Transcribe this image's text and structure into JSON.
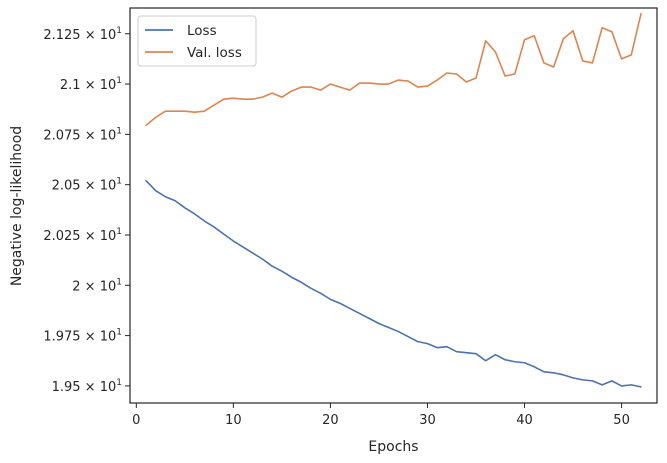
{
  "chart_data": {
    "type": "line",
    "xlabel": "Epochs",
    "ylabel": "Negative log-likelihood",
    "xlim": [
      -0.65,
      53.65
    ],
    "ylim": [
      19.415,
      21.378
    ],
    "grid": false,
    "legend_position": "top-left",
    "x_ticks": [
      {
        "value": 0,
        "label": "0"
      },
      {
        "value": 10,
        "label": "10"
      },
      {
        "value": 20,
        "label": "20"
      },
      {
        "value": 30,
        "label": "30"
      },
      {
        "value": 40,
        "label": "40"
      },
      {
        "value": 50,
        "label": "50"
      }
    ],
    "y_ticks": [
      {
        "value": 19.5,
        "mantissa": "1.95",
        "exp": "1"
      },
      {
        "value": 19.75,
        "mantissa": "1.975",
        "exp": "1"
      },
      {
        "value": 20.0,
        "mantissa": "2",
        "exp": "1"
      },
      {
        "value": 20.25,
        "mantissa": "2.025",
        "exp": "1"
      },
      {
        "value": 20.5,
        "mantissa": "2.05",
        "exp": "1"
      },
      {
        "value": 20.75,
        "mantissa": "2.075",
        "exp": "1"
      },
      {
        "value": 21.0,
        "mantissa": "2.1",
        "exp": "1"
      },
      {
        "value": 21.25,
        "mantissa": "2.125",
        "exp": "1"
      }
    ],
    "x": [
      1,
      2,
      3,
      4,
      5,
      6,
      7,
      8,
      9,
      10,
      11,
      12,
      13,
      14,
      15,
      16,
      17,
      18,
      19,
      20,
      21,
      22,
      23,
      24,
      25,
      26,
      27,
      28,
      29,
      30,
      31,
      32,
      33,
      34,
      35,
      36,
      37,
      38,
      39,
      40,
      41,
      42,
      43,
      44,
      45,
      46,
      47,
      48,
      49,
      50,
      51,
      52
    ],
    "series": [
      {
        "name": "Loss",
        "color": "#4c72b0",
        "values": [
          20.52,
          20.47,
          20.44,
          20.42,
          20.385,
          20.355,
          20.32,
          20.29,
          20.255,
          20.22,
          20.19,
          20.16,
          20.13,
          20.095,
          20.07,
          20.04,
          20.015,
          19.985,
          19.96,
          19.93,
          19.91,
          19.885,
          19.86,
          19.835,
          19.81,
          19.79,
          19.77,
          19.745,
          19.72,
          19.71,
          19.69,
          19.695,
          19.67,
          19.665,
          19.66,
          19.625,
          19.655,
          19.63,
          19.62,
          19.615,
          19.595,
          19.57,
          19.565,
          19.555,
          19.54,
          19.53,
          19.525,
          19.505,
          19.525,
          19.5,
          19.505,
          19.495
        ]
      },
      {
        "name": "Val. loss",
        "color": "#dd8452",
        "values": [
          20.795,
          20.835,
          20.865,
          20.865,
          20.865,
          20.86,
          20.865,
          20.895,
          20.925,
          20.93,
          20.925,
          20.925,
          20.935,
          20.955,
          20.935,
          20.965,
          20.985,
          20.985,
          20.97,
          21.0,
          20.985,
          20.97,
          21.005,
          21.005,
          21.0,
          21.0,
          21.02,
          21.015,
          20.985,
          20.99,
          21.02,
          21.055,
          21.05,
          21.01,
          21.03,
          21.215,
          21.16,
          21.04,
          21.05,
          21.22,
          21.24,
          21.105,
          21.085,
          21.225,
          21.265,
          21.115,
          21.105,
          21.28,
          21.26,
          21.125,
          21.145,
          21.35
        ]
      }
    ]
  }
}
